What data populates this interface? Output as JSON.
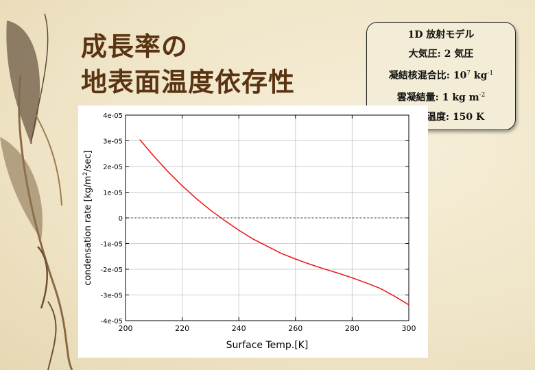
{
  "slide": {
    "title_line1": "成長率の",
    "title_line2": "地表面温度依存性"
  },
  "info_box": {
    "line1": "1D 放射モデル",
    "line2": "大気圧: 2 気圧",
    "line3_prefix": "凝結核混合比: 10",
    "line3_exp": "7",
    "line3_unit": " kg",
    "line3_unit_exp": "-1",
    "line4_prefix": "雲凝結量: 1 kg m",
    "line4_exp": "-2",
    "line5": "成層圏温度: 150 K"
  },
  "colors": {
    "title": "#5a3412",
    "series": "#ee1111",
    "background": "#efe6cc"
  },
  "chart_data": {
    "type": "line",
    "xlabel": "Surface Temp.[K]",
    "ylabel_prefix": "condensation rate [kg/m",
    "ylabel_sup": "2",
    "ylabel_suffix": "/sec]",
    "xlim": [
      200,
      300
    ],
    "ylim": [
      -4e-05,
      4e-05
    ],
    "xticks": [
      200,
      220,
      240,
      260,
      280,
      300
    ],
    "xtick_labels": [
      "200",
      "220",
      "240",
      "260",
      "280",
      "300"
    ],
    "yticks": [
      4e-05,
      3e-05,
      2e-05,
      1e-05,
      0,
      -1e-05,
      -2e-05,
      -3e-05,
      -4e-05
    ],
    "ytick_labels": [
      "4e-05",
      "3e-05",
      "2e-05",
      "1e-05",
      "0",
      "-1e-05",
      "-2e-05",
      "-3e-05",
      "-4e-05"
    ],
    "grid": true,
    "zero_line": true,
    "series": [
      {
        "color": "#ee1111",
        "x": [
          205,
          210,
          215,
          220,
          225,
          230,
          235,
          240,
          245,
          250,
          255,
          260,
          265,
          270,
          275,
          280,
          285,
          290,
          295,
          300
        ],
        "y": [
          3.05e-05,
          2.4e-05,
          1.8e-05,
          1.25e-05,
          7.5e-06,
          3e-06,
          -1e-06,
          -4.8e-06,
          -8.2e-06,
          -1.1e-05,
          -1.38e-05,
          -1.6e-05,
          -1.8e-05,
          -1.98e-05,
          -2.15e-05,
          -2.33e-05,
          -2.53e-05,
          -2.75e-05,
          -3.05e-05,
          -3.38e-05
        ]
      }
    ]
  }
}
